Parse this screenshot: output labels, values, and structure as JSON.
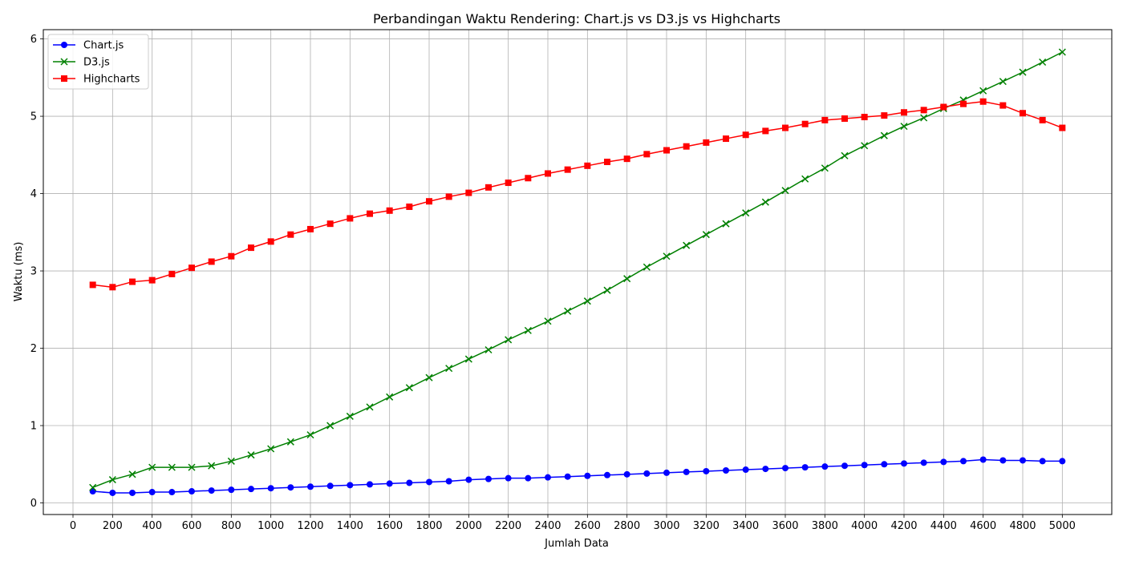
{
  "chart_data": {
    "type": "line",
    "title": "Perbandingan Waktu Rendering: Chart.js vs D3.js vs Highcharts",
    "xlabel": "Jumlah Data",
    "ylabel": "Waktu (ms)",
    "xlim": [
      -150,
      5250
    ],
    "ylim": [
      -0.15,
      6.12
    ],
    "xticks": [
      0,
      200,
      400,
      600,
      800,
      1000,
      1200,
      1400,
      1600,
      1800,
      2000,
      2200,
      2400,
      2600,
      2800,
      3000,
      3200,
      3400,
      3600,
      3800,
      4000,
      4200,
      4400,
      4600,
      4800,
      5000
    ],
    "yticks": [
      0,
      1,
      2,
      3,
      4,
      5,
      6
    ],
    "grid": true,
    "legend_position": "top-left",
    "x": [
      100,
      200,
      300,
      400,
      500,
      600,
      700,
      800,
      900,
      1000,
      1100,
      1200,
      1300,
      1400,
      1500,
      1600,
      1700,
      1800,
      1900,
      2000,
      2100,
      2200,
      2300,
      2400,
      2500,
      2600,
      2700,
      2800,
      2900,
      3000,
      3100,
      3200,
      3300,
      3400,
      3500,
      3600,
      3700,
      3800,
      3900,
      4000,
      4100,
      4200,
      4300,
      4400,
      4500,
      4600,
      4700,
      4800,
      4900,
      5000
    ],
    "series": [
      {
        "name": "Chart.js",
        "color": "#0000ff",
        "marker": "circle",
        "values": [
          0.15,
          0.13,
          0.13,
          0.14,
          0.14,
          0.15,
          0.16,
          0.17,
          0.18,
          0.19,
          0.2,
          0.21,
          0.22,
          0.23,
          0.24,
          0.25,
          0.26,
          0.27,
          0.28,
          0.3,
          0.31,
          0.32,
          0.32,
          0.33,
          0.34,
          0.35,
          0.36,
          0.37,
          0.38,
          0.39,
          0.4,
          0.41,
          0.42,
          0.43,
          0.44,
          0.45,
          0.46,
          0.47,
          0.48,
          0.49,
          0.5,
          0.51,
          0.52,
          0.53,
          0.54,
          0.56,
          0.55,
          0.55,
          0.54,
          0.54
        ]
      },
      {
        "name": "D3.js",
        "color": "#008000",
        "marker": "x",
        "values": [
          0.2,
          0.3,
          0.37,
          0.46,
          0.46,
          0.46,
          0.48,
          0.54,
          0.62,
          0.7,
          0.79,
          0.88,
          1.0,
          1.12,
          1.24,
          1.37,
          1.49,
          1.62,
          1.74,
          1.86,
          1.98,
          2.11,
          2.23,
          2.35,
          2.48,
          2.61,
          2.75,
          2.9,
          3.05,
          3.19,
          3.33,
          3.47,
          3.61,
          3.75,
          3.89,
          4.04,
          4.19,
          4.33,
          4.49,
          4.62,
          4.75,
          4.87,
          4.98,
          5.1,
          5.21,
          5.33,
          5.45,
          5.57,
          5.7,
          5.83
        ]
      },
      {
        "name": "Highcharts",
        "color": "#ff0000",
        "marker": "square",
        "values": [
          2.82,
          2.79,
          2.86,
          2.88,
          2.96,
          3.04,
          3.12,
          3.19,
          3.3,
          3.38,
          3.47,
          3.54,
          3.61,
          3.68,
          3.74,
          3.78,
          3.83,
          3.9,
          3.96,
          4.01,
          4.08,
          4.14,
          4.2,
          4.26,
          4.31,
          4.36,
          4.41,
          4.45,
          4.51,
          4.56,
          4.61,
          4.66,
          4.71,
          4.76,
          4.81,
          4.85,
          4.9,
          4.95,
          4.97,
          4.99,
          5.01,
          5.05,
          5.08,
          5.12,
          5.16,
          5.19,
          5.14,
          5.04,
          4.95,
          4.85
        ]
      }
    ]
  }
}
